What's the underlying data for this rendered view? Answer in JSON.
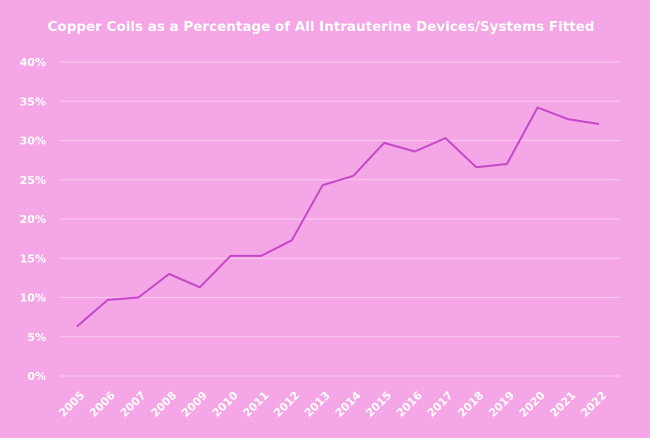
{
  "chart_data": {
    "type": "line",
    "title": "Copper Coils as a Percentage of All Intrauterine Devices/Systems Fitted",
    "xlabel": "",
    "ylabel": "",
    "categories": [
      "2005",
      "2006",
      "2007",
      "2008",
      "2009",
      "2010",
      "2011",
      "2012",
      "2013",
      "2014",
      "2015",
      "2016",
      "2017",
      "2018",
      "2019",
      "2020",
      "2021",
      "2022"
    ],
    "series": [
      {
        "values": [
          6.3,
          9.7,
          10.0,
          13.0,
          11.3,
          15.3,
          15.3,
          17.3,
          24.3,
          25.5,
          29.7,
          28.6,
          30.3,
          26.6,
          27.0,
          34.2,
          32.7,
          32.1
        ]
      }
    ],
    "ylim": [
      0,
      40
    ],
    "yticks": [
      "0%",
      "5%",
      "10%",
      "15%",
      "20%",
      "25%",
      "30%",
      "35%",
      "40%"
    ],
    "grid": true,
    "colors": {
      "background": "#f4a6e6",
      "line": "#c548c8",
      "text": "#ffffff",
      "grid": "#f9c8ef"
    }
  }
}
